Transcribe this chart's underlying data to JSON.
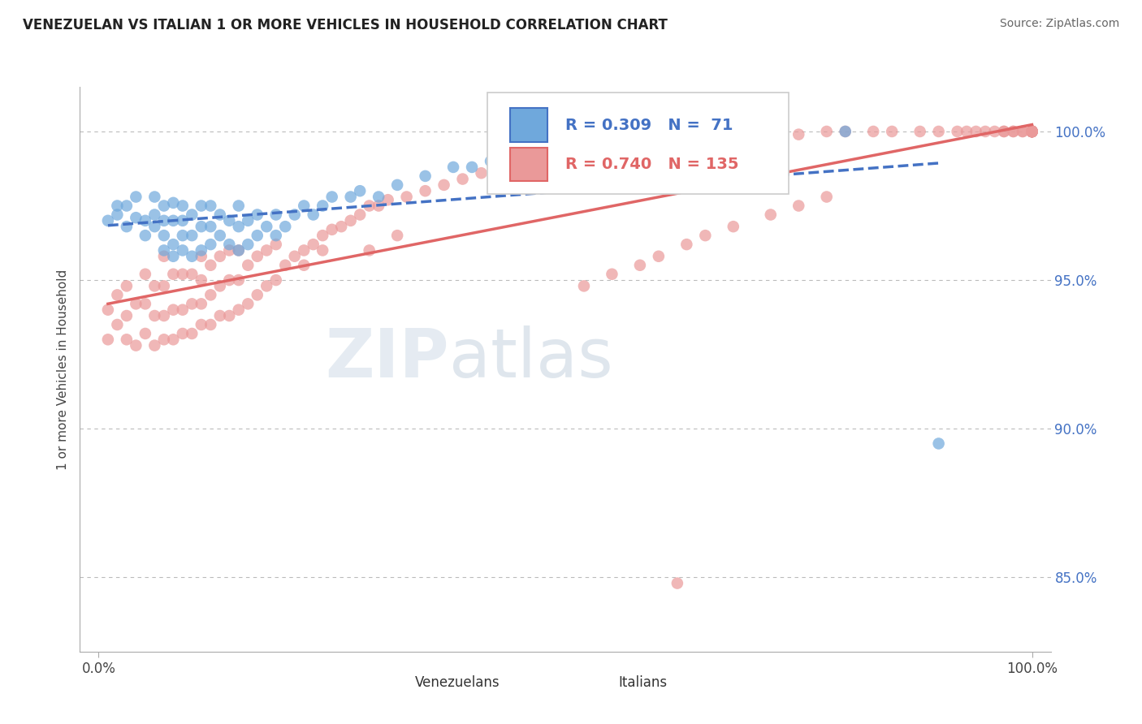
{
  "title": "VENEZUELAN VS ITALIAN 1 OR MORE VEHICLES IN HOUSEHOLD CORRELATION CHART",
  "source": "Source: ZipAtlas.com",
  "ylabel": "1 or more Vehicles in Household",
  "r_venezuelan": 0.309,
  "n_venezuelan": 71,
  "r_italian": 0.74,
  "n_italian": 135,
  "color_venezuelan": "#6fa8dc",
  "color_italian": "#ea9999",
  "trend_color_venezuelan": "#4472c4",
  "trend_color_italian": "#e06666",
  "background_color": "#ffffff",
  "ymin": 0.825,
  "ymax": 1.015,
  "xmin": -0.02,
  "xmax": 1.02,
  "yticks": [
    0.85,
    0.9,
    0.95,
    1.0
  ],
  "ytick_labels": [
    "85.0%",
    "90.0%",
    "95.0%",
    "100.0%"
  ],
  "xticks": [
    0.0,
    1.0
  ],
  "xtick_labels": [
    "0.0%",
    "100.0%"
  ],
  "venezuelan_x": [
    0.01,
    0.02,
    0.02,
    0.03,
    0.03,
    0.04,
    0.04,
    0.05,
    0.05,
    0.06,
    0.06,
    0.06,
    0.07,
    0.07,
    0.07,
    0.07,
    0.08,
    0.08,
    0.08,
    0.08,
    0.09,
    0.09,
    0.09,
    0.09,
    0.1,
    0.1,
    0.1,
    0.11,
    0.11,
    0.11,
    0.12,
    0.12,
    0.12,
    0.13,
    0.13,
    0.14,
    0.14,
    0.15,
    0.15,
    0.15,
    0.16,
    0.16,
    0.17,
    0.17,
    0.18,
    0.19,
    0.19,
    0.2,
    0.21,
    0.22,
    0.23,
    0.24,
    0.25,
    0.27,
    0.28,
    0.3,
    0.32,
    0.35,
    0.38,
    0.4,
    0.42,
    0.45,
    0.48,
    0.5,
    0.55,
    0.58,
    0.62,
    0.68,
    0.72,
    0.8,
    0.9
  ],
  "venezuelan_y": [
    0.97,
    0.975,
    0.972,
    0.968,
    0.975,
    0.971,
    0.978,
    0.965,
    0.97,
    0.968,
    0.972,
    0.978,
    0.96,
    0.965,
    0.97,
    0.975,
    0.958,
    0.962,
    0.97,
    0.976,
    0.96,
    0.965,
    0.97,
    0.975,
    0.958,
    0.965,
    0.972,
    0.96,
    0.968,
    0.975,
    0.962,
    0.968,
    0.975,
    0.965,
    0.972,
    0.962,
    0.97,
    0.96,
    0.968,
    0.975,
    0.962,
    0.97,
    0.965,
    0.972,
    0.968,
    0.965,
    0.972,
    0.968,
    0.972,
    0.975,
    0.972,
    0.975,
    0.978,
    0.978,
    0.98,
    0.978,
    0.982,
    0.985,
    0.988,
    0.988,
    0.99,
    0.992,
    0.992,
    0.995,
    0.995,
    0.998,
    0.998,
    1.0,
    1.0,
    1.0,
    0.895
  ],
  "italian_x": [
    0.01,
    0.01,
    0.02,
    0.02,
    0.03,
    0.03,
    0.03,
    0.04,
    0.04,
    0.05,
    0.05,
    0.05,
    0.06,
    0.06,
    0.06,
    0.07,
    0.07,
    0.07,
    0.07,
    0.08,
    0.08,
    0.08,
    0.09,
    0.09,
    0.09,
    0.1,
    0.1,
    0.1,
    0.11,
    0.11,
    0.11,
    0.11,
    0.12,
    0.12,
    0.12,
    0.13,
    0.13,
    0.13,
    0.14,
    0.14,
    0.14,
    0.15,
    0.15,
    0.15,
    0.16,
    0.16,
    0.17,
    0.17,
    0.18,
    0.18,
    0.19,
    0.19,
    0.2,
    0.21,
    0.22,
    0.23,
    0.24,
    0.25,
    0.26,
    0.27,
    0.28,
    0.29,
    0.3,
    0.31,
    0.33,
    0.35,
    0.37,
    0.39,
    0.41,
    0.43,
    0.45,
    0.47,
    0.5,
    0.53,
    0.55,
    0.57,
    0.6,
    0.62,
    0.65,
    0.68,
    0.7,
    0.73,
    0.75,
    0.78,
    0.8,
    0.83,
    0.85,
    0.88,
    0.9,
    0.92,
    0.93,
    0.94,
    0.95,
    0.96,
    0.97,
    0.97,
    0.98,
    0.98,
    0.99,
    0.99,
    1.0,
    1.0,
    1.0,
    1.0,
    1.0,
    1.0,
    1.0,
    1.0,
    1.0,
    1.0,
    1.0,
    1.0,
    1.0,
    1.0,
    1.0,
    1.0,
    1.0,
    1.0,
    1.0,
    1.0,
    0.22,
    0.24,
    0.29,
    0.32,
    0.52,
    0.55,
    0.58,
    0.6,
    0.63,
    0.65,
    0.68,
    0.72,
    0.75,
    0.78,
    0.62
  ],
  "italian_y": [
    0.93,
    0.94,
    0.935,
    0.945,
    0.93,
    0.938,
    0.948,
    0.928,
    0.942,
    0.932,
    0.942,
    0.952,
    0.928,
    0.938,
    0.948,
    0.93,
    0.938,
    0.948,
    0.958,
    0.93,
    0.94,
    0.952,
    0.932,
    0.94,
    0.952,
    0.932,
    0.942,
    0.952,
    0.935,
    0.942,
    0.95,
    0.958,
    0.935,
    0.945,
    0.955,
    0.938,
    0.948,
    0.958,
    0.938,
    0.95,
    0.96,
    0.94,
    0.95,
    0.96,
    0.942,
    0.955,
    0.945,
    0.958,
    0.948,
    0.96,
    0.95,
    0.962,
    0.955,
    0.958,
    0.96,
    0.962,
    0.965,
    0.967,
    0.968,
    0.97,
    0.972,
    0.975,
    0.975,
    0.977,
    0.978,
    0.98,
    0.982,
    0.984,
    0.986,
    0.988,
    0.99,
    0.991,
    0.992,
    0.993,
    0.994,
    0.995,
    0.996,
    0.997,
    0.997,
    0.998,
    0.998,
    0.999,
    0.999,
    1.0,
    1.0,
    1.0,
    1.0,
    1.0,
    1.0,
    1.0,
    1.0,
    1.0,
    1.0,
    1.0,
    1.0,
    1.0,
    1.0,
    1.0,
    1.0,
    1.0,
    1.0,
    1.0,
    1.0,
    1.0,
    1.0,
    1.0,
    1.0,
    1.0,
    1.0,
    1.0,
    1.0,
    1.0,
    1.0,
    1.0,
    1.0,
    1.0,
    1.0,
    1.0,
    1.0,
    1.0,
    0.955,
    0.96,
    0.96,
    0.965,
    0.948,
    0.952,
    0.955,
    0.958,
    0.962,
    0.965,
    0.968,
    0.972,
    0.975,
    0.978,
    0.848
  ]
}
